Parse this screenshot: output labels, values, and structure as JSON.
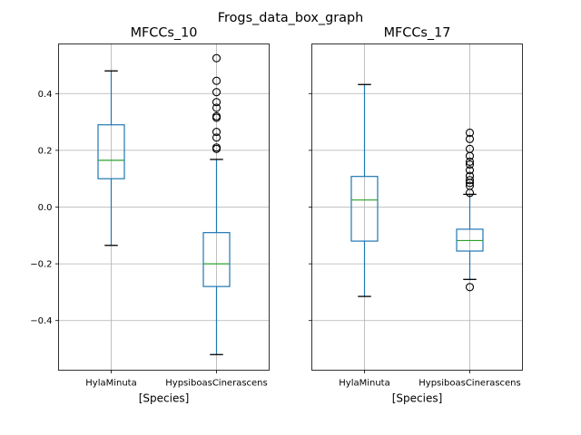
{
  "figure": {
    "suptitle": "Frogs_data_box_graph"
  },
  "colors": {
    "box": "#1f77b4",
    "median": "#2ca02c",
    "grid": "#b0b0b0",
    "flier": "#000000"
  },
  "chart_data": [
    {
      "type": "box",
      "title": "MFCCs_10",
      "xlabel": "[Species]",
      "ylabel": "",
      "ylim": [
        -0.575,
        0.575
      ],
      "yticks": [
        -0.4,
        -0.2,
        0.0,
        0.2,
        0.4
      ],
      "ytick_labels": [
        "−0.4",
        "−0.2",
        "0.0",
        "0.2",
        "0.4"
      ],
      "grid": true,
      "categories": [
        "HylaMinuta",
        "HypsiboasCinerascens"
      ],
      "boxes": [
        {
          "category": "HylaMinuta",
          "whisker_low": -0.135,
          "q1": 0.1,
          "median": 0.165,
          "q3": 0.29,
          "whisker_high": 0.48,
          "fliers": []
        },
        {
          "category": "HypsiboasCinerascens",
          "whisker_low": -0.52,
          "q1": -0.28,
          "median": -0.2,
          "q3": -0.09,
          "whisker_high": 0.168,
          "fliers": [
            0.525,
            0.445,
            0.405,
            0.37,
            0.35,
            0.32,
            0.315,
            0.265,
            0.245,
            0.21,
            0.205
          ]
        }
      ]
    },
    {
      "type": "box",
      "title": "MFCCs_17",
      "xlabel": "[Species]",
      "ylabel": "",
      "ylim": [
        -0.575,
        0.575
      ],
      "yticks": [
        -0.4,
        -0.2,
        0.0,
        0.2,
        0.4
      ],
      "ytick_labels": [],
      "grid": true,
      "categories": [
        "HylaMinuta",
        "HypsiboasCinerascens"
      ],
      "boxes": [
        {
          "category": "HylaMinuta",
          "whisker_low": -0.315,
          "q1": -0.12,
          "median": 0.025,
          "q3": 0.108,
          "whisker_high": 0.432,
          "fliers": []
        },
        {
          "category": "HypsiboasCinerascens",
          "whisker_low": -0.255,
          "q1": -0.155,
          "median": -0.118,
          "q3": -0.078,
          "whisker_high": 0.045,
          "fliers": [
            0.262,
            0.24,
            0.205,
            0.18,
            0.16,
            0.15,
            0.13,
            0.11,
            0.095,
            0.085,
            0.075,
            0.05,
            -0.282
          ]
        }
      ]
    }
  ]
}
